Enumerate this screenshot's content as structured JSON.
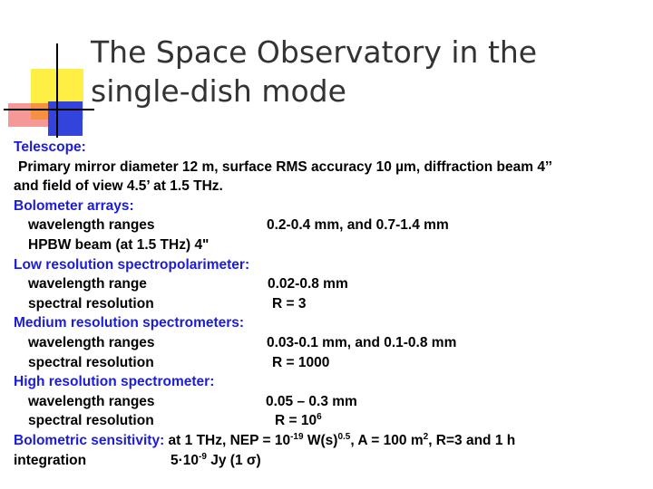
{
  "title": {
    "line1": "The Space Observatory in the",
    "line2": "single-dish mode"
  },
  "telescope": {
    "heading": "Telescope",
    "colon": ":",
    "line1": "Primary mirror diameter 12 m, surface RMS accuracy 10 µm, diffraction beam 4’’",
    "line2": "and field of view 4.5’ at 1.5 THz."
  },
  "bolometer": {
    "heading": "Bolometer arrays",
    "colon": ":",
    "wavelength_label": "wavelength ranges",
    "wavelength_value": "0.2-0.4 mm, and 0.7-1.4 mm",
    "hpbw": "HPBW beam (at 1.5 THz)  4\""
  },
  "low_res": {
    "heading": "Low resolution spectropolarimeter",
    "colon": ":",
    "wavelength_label": "wavelength range",
    "wavelength_value": "0.02-0.8 mm",
    "resolution_label": "spectral resolution",
    "resolution_value": "R = 3"
  },
  "medium_res": {
    "heading": "Medium resolution spectrometers",
    "colon": ":",
    "wavelength_label": "wavelength ranges",
    "wavelength_value": "0.03-0.1 mm, and 0.1-0.8 mm",
    "resolution_label": "spectral resolution",
    "resolution_value": "R = 1000"
  },
  "high_res": {
    "heading": "High resolution spectrometer",
    "colon": ":",
    "wavelength_label": "wavelength ranges",
    "wavelength_value": "0.05 – 0.3 mm",
    "resolution_label": "spectral resolution",
    "resolution_value_base": "R = 10",
    "resolution_value_exp": "6"
  },
  "sensitivity": {
    "heading": "Bolometric sensitivity",
    "colon": ":",
    "t1": " at 1 THz, NEP = 10",
    "e1": "-19",
    "t2": " W(s)",
    "e2": "0.5",
    "t3": ", A = 100 m",
    "e3": "2",
    "t4": ", R=3 and 1 h",
    "line2_label": "integration",
    "v1": "5·10",
    "e4": "-9",
    "v2": " Jy (1 σ)"
  },
  "colors": {
    "heading": "#1c1cd8",
    "title": "#333333",
    "deco_yellow": "#ffee44",
    "deco_blue": "#3344dd",
    "deco_red": "#ee4444"
  }
}
